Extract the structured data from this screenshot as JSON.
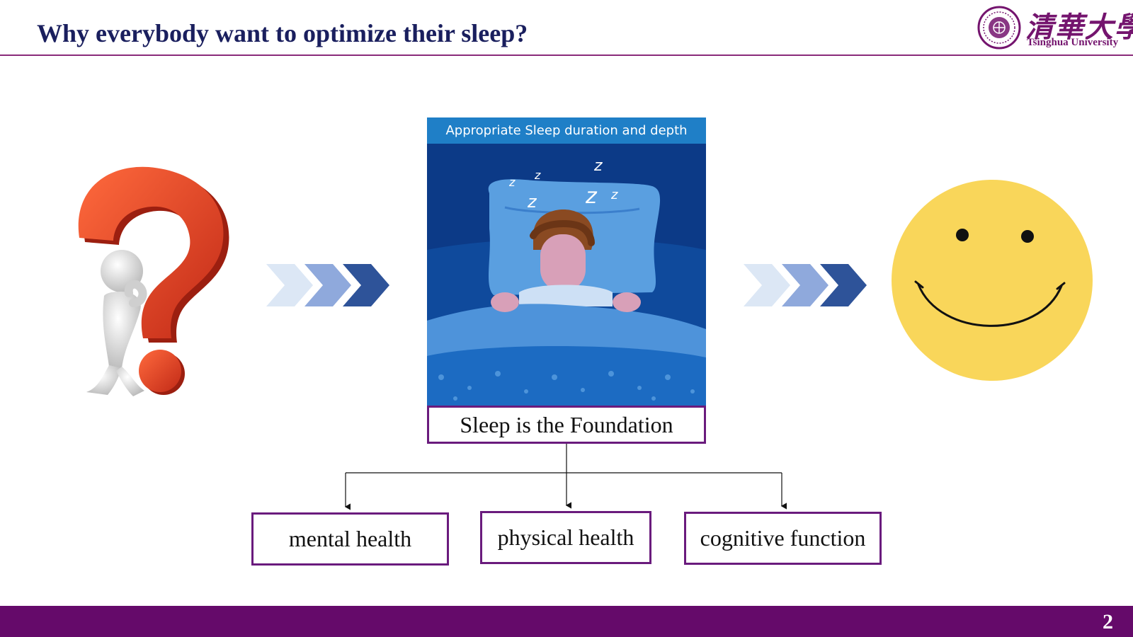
{
  "slide": {
    "title": "Why everybody want to optimize their sleep?",
    "page_number": "2"
  },
  "logo": {
    "chinese_name": "清華大學",
    "english_name": "Tsinghua University",
    "color": "#74146e"
  },
  "center_panel": {
    "header": "Appropriate Sleep duration and depth",
    "caption": "Sleep is the Foundation",
    "sleep_symbols": [
      "z",
      "z",
      "z",
      "z",
      "z",
      "z"
    ]
  },
  "outcomes": [
    {
      "label": "mental health"
    },
    {
      "label": "physical health"
    },
    {
      "label": "cognitive function"
    }
  ],
  "icons": {
    "left": "thinking-figure-question-mark-icon",
    "arrows": "chevron-arrows-icon",
    "right": "smiley-face-icon"
  },
  "colors": {
    "title": "#1a1f5e",
    "accent_purple": "#650a6a",
    "box_border": "#6a1b7d",
    "panel_header": "#1f7fc7",
    "question_mark": "#e8472a",
    "smiley": "#f9d65a"
  }
}
